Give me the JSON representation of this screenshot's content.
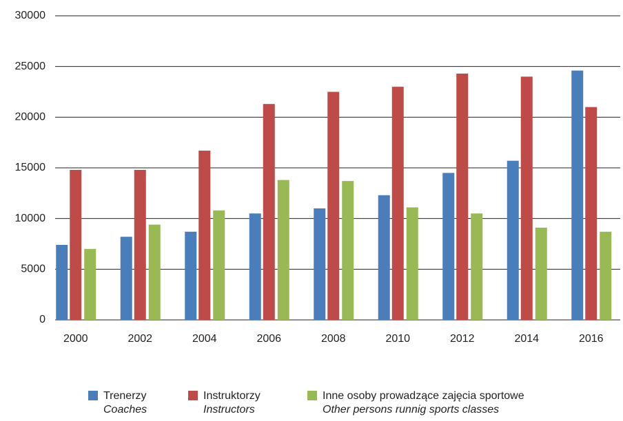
{
  "chart_data": {
    "type": "bar",
    "categories": [
      "2000",
      "2002",
      "2004",
      "2006",
      "2008",
      "2010",
      "2012",
      "2014",
      "2016"
    ],
    "series": [
      {
        "name": "Trenerzy",
        "subname": "Coaches",
        "color": "#4a7ebb",
        "values": [
          7400,
          8200,
          8700,
          10500,
          11000,
          12300,
          14500,
          15700,
          24600
        ]
      },
      {
        "name": "Instruktorzy",
        "subname": "Instructors",
        "color": "#be4b48",
        "values": [
          14800,
          14800,
          16700,
          21300,
          22500,
          23000,
          24300,
          24000,
          21000
        ]
      },
      {
        "name": "Inne osoby prowadzące zajęcia sportowe",
        "subname": "Other persons runnig sports classes",
        "color": "#98b954",
        "values": [
          7000,
          9400,
          10800,
          13800,
          13700,
          11100,
          10500,
          9100,
          8700
        ]
      }
    ],
    "ylim": [
      0,
      30000
    ],
    "yticks": [
      0,
      5000,
      10000,
      15000,
      20000,
      25000,
      30000
    ],
    "grid": true
  }
}
